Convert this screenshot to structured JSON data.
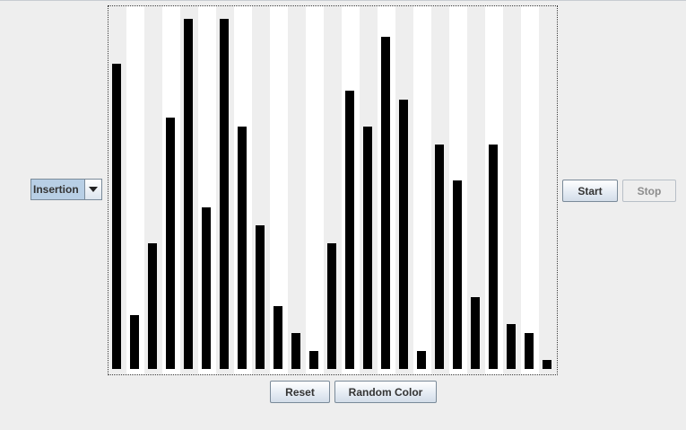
{
  "algorithm_select": {
    "selected": "Insertion"
  },
  "controls": {
    "start_label": "Start",
    "stop_label": "Stop"
  },
  "bottom_buttons": {
    "reset_label": "Reset",
    "random_color_label": "Random Color"
  },
  "colors": {
    "bar": "#000000",
    "stripe_light": "#eeeeee",
    "stripe_white": "#ffffff"
  },
  "bar_values": [
    34,
    6,
    14,
    28,
    39,
    18,
    39,
    27,
    16,
    7,
    4,
    2,
    14,
    31,
    27,
    37,
    30,
    2,
    25,
    21,
    8,
    25,
    5,
    4,
    1
  ]
}
